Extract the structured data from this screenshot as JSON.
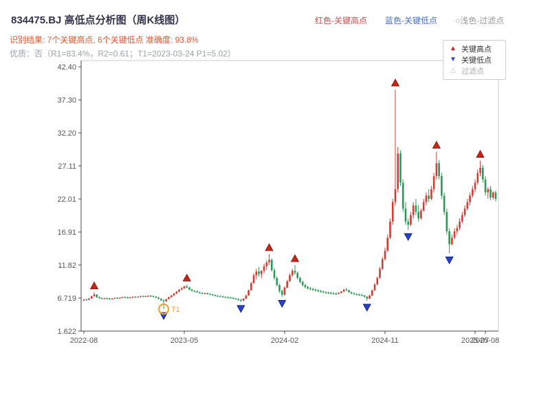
{
  "header": {
    "title": "834475.BJ 高低点分析图（周K线图）",
    "top_legend": [
      {
        "label": "红色-关键高点",
        "color": "#c0504d"
      },
      {
        "label": "蓝色-关键低点",
        "color": "#4a6fbf"
      },
      {
        "label": "○浅色-过滤点",
        "color": "#999999"
      }
    ],
    "result_line": "识别结果: 7个关键高点, 6个关键低点   准确度: 93.8%",
    "quality_line": "优质：否（R1=83.4%，R2=0.61；T1=2023-03-24 P1=5.02）"
  },
  "stats": {
    "key_high_count": 7,
    "key_low_count": 6,
    "accuracy": "93.8%",
    "premium": "否",
    "R1": "83.4%",
    "R2": "0.61",
    "T1": "2023-03-24",
    "P1": "5.02"
  },
  "legend_box": {
    "items": [
      {
        "glyph": "▲",
        "color": "#c62617",
        "label": "关键高点"
      },
      {
        "glyph": "▼",
        "color": "#2640c8",
        "label": "关键低点"
      },
      {
        "glyph": "△",
        "color": "#bbbbbb",
        "label": "过滤点"
      }
    ]
  },
  "chart_data": {
    "type": "candlestick",
    "symbol": "834475.BJ",
    "period": "weekly",
    "title": "834475.BJ 高低点分析图（周K线图）",
    "ylim": [
      1.622,
      42.4
    ],
    "y_ticks": [
      42.4,
      37.3,
      32.2,
      27.11,
      22.01,
      16.91,
      11.82,
      6.719,
      1.622
    ],
    "y_tick_labels": [
      "42.40",
      "37.30",
      "32.20",
      "27.11",
      "22.01",
      "16.91",
      "11.82",
      "6.719",
      "1.622"
    ],
    "x_ticks": [
      {
        "label": "2022-08",
        "index": 0
      },
      {
        "label": "2023-05",
        "index": 39
      },
      {
        "label": "2024-02",
        "index": 78
      },
      {
        "label": "2024-11",
        "index": 117
      },
      {
        "label": "2025-07",
        "index": 152
      },
      {
        "label": "2025-08",
        "index": 156
      }
    ],
    "colors": {
      "up": "#cd3f35",
      "down": "#2a9a56",
      "high_marker": "#c62617",
      "low_marker": "#2640c8",
      "annotation": "#eda23c",
      "axis": "#444444",
      "axis_light": "#cccccc",
      "tick_text": "#555555"
    },
    "candles": [
      [
        6.4,
        6.55,
        6.3,
        6.5
      ],
      [
        6.5,
        6.62,
        6.4,
        6.45
      ],
      [
        6.45,
        6.7,
        6.4,
        6.65
      ],
      [
        6.65,
        7.05,
        6.6,
        7.0
      ],
      [
        7.0,
        7.6,
        6.95,
        7.25
      ],
      [
        7.25,
        7.35,
        6.75,
        6.85
      ],
      [
        6.85,
        6.95,
        6.6,
        6.7
      ],
      [
        6.7,
        6.82,
        6.58,
        6.62
      ],
      [
        6.62,
        6.75,
        6.55,
        6.7
      ],
      [
        6.7,
        6.8,
        6.6,
        6.65
      ],
      [
        6.65,
        6.75,
        6.52,
        6.6
      ],
      [
        6.6,
        6.72,
        6.5,
        6.66
      ],
      [
        6.66,
        6.8,
        6.6,
        6.75
      ],
      [
        6.75,
        6.85,
        6.65,
        6.7
      ],
      [
        6.7,
        6.82,
        6.62,
        6.78
      ],
      [
        6.78,
        6.92,
        6.7,
        6.88
      ],
      [
        6.88,
        6.98,
        6.78,
        6.82
      ],
      [
        6.82,
        6.92,
        6.72,
        6.78
      ],
      [
        6.78,
        6.88,
        6.68,
        6.84
      ],
      [
        6.84,
        6.96,
        6.76,
        6.92
      ],
      [
        6.92,
        7.02,
        6.82,
        6.88
      ],
      [
        6.88,
        6.98,
        6.78,
        6.94
      ],
      [
        6.94,
        7.08,
        6.86,
        7.02
      ],
      [
        7.02,
        7.12,
        6.92,
        6.98
      ],
      [
        6.98,
        7.08,
        6.88,
        7.04
      ],
      [
        7.04,
        7.14,
        6.94,
        7.08
      ],
      [
        7.08,
        7.18,
        6.98,
        7.02
      ],
      [
        7.02,
        7.12,
        6.88,
        6.92
      ],
      [
        6.92,
        7.02,
        6.72,
        6.8
      ],
      [
        6.8,
        6.9,
        6.52,
        6.6
      ],
      [
        6.6,
        6.7,
        6.25,
        6.38
      ],
      [
        6.38,
        6.52,
        5.02,
        6.22
      ],
      [
        6.22,
        6.62,
        6.15,
        6.55
      ],
      [
        6.55,
        6.92,
        6.5,
        6.85
      ],
      [
        6.85,
        7.22,
        6.8,
        7.12
      ],
      [
        7.12,
        7.52,
        7.06,
        7.42
      ],
      [
        7.42,
        7.82,
        7.35,
        7.72
      ],
      [
        7.72,
        8.12,
        7.62,
        8.02
      ],
      [
        8.02,
        8.42,
        7.92,
        8.22
      ],
      [
        8.22,
        8.62,
        8.12,
        8.52
      ],
      [
        8.52,
        8.8,
        8.22,
        8.35
      ],
      [
        8.35,
        8.45,
        7.92,
        8.02
      ],
      [
        8.02,
        8.12,
        7.72,
        7.82
      ],
      [
        7.82,
        7.95,
        7.62,
        7.78
      ],
      [
        7.78,
        7.88,
        7.52,
        7.62
      ],
      [
        7.62,
        7.72,
        7.42,
        7.52
      ],
      [
        7.52,
        7.62,
        7.32,
        7.42
      ],
      [
        7.42,
        7.56,
        7.32,
        7.48
      ],
      [
        7.48,
        7.58,
        7.28,
        7.38
      ],
      [
        7.38,
        7.48,
        7.18,
        7.28
      ],
      [
        7.28,
        7.38,
        7.08,
        7.18
      ],
      [
        7.18,
        7.28,
        6.98,
        7.08
      ],
      [
        7.08,
        7.18,
        6.92,
        7.02
      ],
      [
        7.02,
        7.12,
        6.88,
        6.96
      ],
      [
        6.96,
        7.06,
        6.82,
        6.9
      ],
      [
        6.9,
        7.0,
        6.76,
        6.86
      ],
      [
        6.86,
        6.96,
        6.72,
        6.8
      ],
      [
        6.8,
        6.9,
        6.66,
        6.76
      ],
      [
        6.76,
        6.86,
        6.56,
        6.66
      ],
      [
        6.66,
        6.76,
        6.46,
        6.56
      ],
      [
        6.56,
        6.66,
        6.32,
        6.46
      ],
      [
        6.46,
        6.56,
        6.1,
        6.32
      ],
      [
        6.32,
        6.72,
        6.26,
        6.62
      ],
      [
        6.62,
        7.22,
        6.56,
        7.12
      ],
      [
        7.12,
        8.02,
        7.06,
        7.92
      ],
      [
        7.92,
        9.22,
        7.86,
        9.02
      ],
      [
        9.02,
        10.52,
        8.92,
        10.22
      ],
      [
        10.22,
        11.22,
        9.62,
        10.82
      ],
      [
        10.82,
        11.52,
        10.02,
        10.42
      ],
      [
        10.42,
        11.02,
        9.82,
        10.92
      ],
      [
        10.92,
        12.02,
        10.52,
        11.62
      ],
      [
        11.62,
        12.52,
        11.02,
        12.22
      ],
      [
        12.22,
        13.5,
        11.82,
        12.62
      ],
      [
        12.62,
        12.82,
        10.82,
        11.02
      ],
      [
        11.02,
        11.32,
        9.52,
        9.82
      ],
      [
        9.82,
        10.02,
        8.52,
        8.72
      ],
      [
        8.72,
        8.92,
        7.52,
        7.82
      ],
      [
        7.82,
        8.02,
        6.9,
        7.22
      ],
      [
        7.22,
        8.52,
        7.12,
        8.32
      ],
      [
        8.32,
        9.52,
        8.22,
        9.32
      ],
      [
        9.32,
        10.52,
        9.22,
        10.22
      ],
      [
        10.22,
        11.22,
        10.02,
        10.92
      ],
      [
        10.92,
        11.8,
        10.32,
        10.62
      ],
      [
        10.62,
        10.82,
        9.62,
        9.82
      ],
      [
        9.82,
        10.02,
        9.02,
        9.22
      ],
      [
        9.22,
        9.42,
        8.52,
        8.72
      ],
      [
        8.72,
        8.92,
        8.22,
        8.42
      ],
      [
        8.42,
        8.62,
        8.02,
        8.22
      ],
      [
        8.22,
        8.42,
        7.92,
        8.12
      ],
      [
        8.12,
        8.32,
        7.82,
        8.02
      ],
      [
        8.02,
        8.17,
        7.72,
        7.92
      ],
      [
        7.92,
        8.07,
        7.62,
        7.82
      ],
      [
        7.82,
        7.97,
        7.57,
        7.72
      ],
      [
        7.72,
        7.87,
        7.47,
        7.62
      ],
      [
        7.62,
        7.77,
        7.42,
        7.57
      ],
      [
        7.57,
        7.72,
        7.37,
        7.52
      ],
      [
        7.52,
        7.67,
        7.32,
        7.47
      ],
      [
        7.47,
        7.62,
        7.27,
        7.42
      ],
      [
        7.42,
        7.57,
        7.22,
        7.37
      ],
      [
        7.37,
        7.62,
        7.27,
        7.52
      ],
      [
        7.52,
        7.82,
        7.42,
        7.72
      ],
      [
        7.72,
        8.12,
        7.62,
        8.02
      ],
      [
        8.02,
        8.32,
        7.82,
        7.92
      ],
      [
        7.92,
        8.02,
        7.52,
        7.62
      ],
      [
        7.62,
        7.72,
        7.32,
        7.42
      ],
      [
        7.42,
        7.57,
        7.22,
        7.32
      ],
      [
        7.32,
        7.47,
        7.12,
        7.27
      ],
      [
        7.27,
        7.42,
        7.07,
        7.22
      ],
      [
        7.22,
        7.37,
        7.02,
        7.12
      ],
      [
        7.12,
        7.22,
        6.82,
        6.92
      ],
      [
        6.92,
        7.02,
        6.3,
        6.62
      ],
      [
        6.62,
        7.22,
        6.57,
        7.12
      ],
      [
        7.12,
        8.02,
        7.02,
        7.92
      ],
      [
        7.92,
        9.02,
        7.82,
        8.82
      ],
      [
        8.82,
        10.02,
        8.72,
        9.82
      ],
      [
        9.82,
        11.52,
        9.72,
        11.22
      ],
      [
        11.22,
        13.02,
        11.02,
        12.72
      ],
      [
        12.72,
        14.52,
        12.52,
        14.02
      ],
      [
        14.02,
        16.52,
        13.82,
        16.02
      ],
      [
        16.02,
        19.02,
        15.82,
        18.52
      ],
      [
        18.52,
        22.02,
        18.02,
        21.52
      ],
      [
        21.52,
        38.9,
        21.02,
        23.52
      ],
      [
        23.52,
        30.02,
        23.02,
        29.02
      ],
      [
        29.02,
        29.52,
        24.02,
        24.52
      ],
      [
        24.52,
        25.02,
        20.02,
        20.52
      ],
      [
        20.52,
        21.52,
        18.02,
        18.52
      ],
      [
        18.52,
        19.02,
        17.2,
        18.02
      ],
      [
        18.02,
        20.02,
        17.82,
        19.52
      ],
      [
        19.52,
        21.52,
        19.02,
        21.02
      ],
      [
        21.02,
        22.02,
        19.52,
        20.02
      ],
      [
        20.02,
        21.02,
        18.52,
        19.02
      ],
      [
        19.02,
        20.52,
        18.82,
        20.22
      ],
      [
        20.22,
        22.02,
        20.02,
        21.52
      ],
      [
        21.52,
        23.02,
        21.02,
        22.52
      ],
      [
        22.52,
        23.52,
        21.52,
        22.02
      ],
      [
        22.02,
        24.02,
        21.82,
        23.52
      ],
      [
        23.52,
        26.02,
        23.02,
        25.52
      ],
      [
        25.52,
        29.3,
        25.02,
        27.52
      ],
      [
        27.52,
        28.02,
        25.02,
        25.52
      ],
      [
        25.52,
        26.02,
        22.02,
        22.52
      ],
      [
        22.52,
        23.02,
        19.52,
        20.02
      ],
      [
        20.02,
        20.52,
        16.52,
        17.02
      ],
      [
        17.02,
        17.52,
        13.6,
        15.02
      ],
      [
        15.02,
        16.52,
        14.82,
        16.02
      ],
      [
        16.02,
        17.52,
        15.82,
        17.02
      ],
      [
        17.02,
        18.02,
        16.52,
        17.52
      ],
      [
        17.52,
        19.02,
        17.22,
        18.52
      ],
      [
        18.52,
        20.02,
        18.22,
        19.52
      ],
      [
        19.52,
        21.02,
        19.22,
        20.52
      ],
      [
        20.52,
        22.02,
        20.22,
        21.52
      ],
      [
        21.52,
        23.02,
        21.02,
        22.52
      ],
      [
        22.52,
        24.02,
        22.22,
        23.52
      ],
      [
        23.52,
        25.02,
        23.02,
        24.52
      ],
      [
        24.52,
        26.52,
        24.22,
        26.02
      ],
      [
        26.02,
        27.9,
        25.52,
        26.82
      ],
      [
        26.82,
        27.22,
        24.52,
        25.02
      ],
      [
        25.02,
        25.52,
        22.52,
        23.02
      ],
      [
        23.02,
        23.82,
        22.02,
        23.52
      ],
      [
        23.52,
        24.02,
        21.82,
        22.22
      ],
      [
        22.22,
        23.22,
        21.92,
        23.02
      ],
      [
        23.02,
        23.32,
        21.62,
        22.01
      ]
    ],
    "key_highs": [
      {
        "index": 4,
        "price": 7.6
      },
      {
        "index": 40,
        "price": 8.8
      },
      {
        "index": 72,
        "price": 13.5
      },
      {
        "index": 82,
        "price": 11.8
      },
      {
        "index": 121,
        "price": 38.9
      },
      {
        "index": 137,
        "price": 29.3
      },
      {
        "index": 154,
        "price": 27.9
      }
    ],
    "key_lows": [
      {
        "index": 31,
        "price": 5.02
      },
      {
        "index": 61,
        "price": 6.1
      },
      {
        "index": 77,
        "price": 6.9
      },
      {
        "index": 110,
        "price": 6.3
      },
      {
        "index": 126,
        "price": 17.2
      },
      {
        "index": 142,
        "price": 13.6
      }
    ],
    "annotation": {
      "label": "T1",
      "index": 31,
      "price": 5.02
    }
  }
}
